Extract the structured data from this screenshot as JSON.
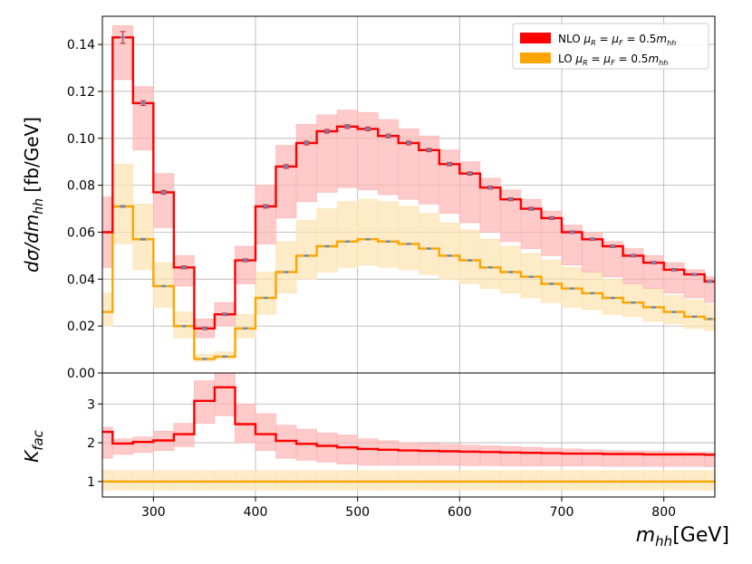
{
  "chart_data": [
    {
      "type": "step",
      "ylabel_parts": {
        "base": "dσ/dm",
        "sub": "hh",
        "unit": " [fb/GeV]"
      },
      "xlim": [
        250,
        850
      ],
      "ylim": [
        0,
        0.152
      ],
      "yticks": [
        0.0,
        0.02,
        0.04,
        0.06,
        0.08,
        0.1,
        0.12,
        0.14
      ],
      "ytick_labels": [
        "0.00",
        "0.02",
        "0.04",
        "0.06",
        "0.08",
        "0.10",
        "0.12",
        "0.14"
      ],
      "grid": true,
      "legend": {
        "position": "top-right",
        "entries": [
          {
            "label_parts": [
              "NLO ",
              "μ",
              "R",
              " = ",
              "μ",
              "F",
              " = 0.5",
              "m",
              "hh"
            ],
            "color": "#ff0000"
          },
          {
            "label_parts": [
              "LO ",
              "μ",
              "R",
              " = ",
              "μ",
              "F",
              " = 0.5",
              "m",
              "hh"
            ],
            "color": "#ffa500"
          }
        ]
      },
      "edges": [
        250,
        260,
        280,
        300,
        320,
        340,
        360,
        380,
        400,
        420,
        440,
        460,
        480,
        500,
        520,
        540,
        560,
        580,
        600,
        620,
        640,
        660,
        680,
        700,
        720,
        740,
        760,
        780,
        800,
        820,
        840,
        850
      ],
      "series": [
        {
          "name": "NLO",
          "color": "#ff0000",
          "band_color": "#ffb3b3",
          "values": [
            0.06,
            0.143,
            0.115,
            0.077,
            0.045,
            0.019,
            0.025,
            0.048,
            0.071,
            0.088,
            0.098,
            0.103,
            0.105,
            0.104,
            0.101,
            0.098,
            0.095,
            0.089,
            0.085,
            0.079,
            0.074,
            0.07,
            0.066,
            0.06,
            0.057,
            0.054,
            0.05,
            0.047,
            0.044,
            0.042,
            0.039
          ],
          "band_low": [
            0.045,
            0.125,
            0.095,
            0.062,
            0.037,
            0.015,
            0.02,
            0.038,
            0.055,
            0.066,
            0.073,
            0.077,
            0.079,
            0.078,
            0.076,
            0.074,
            0.072,
            0.068,
            0.064,
            0.06,
            0.056,
            0.053,
            0.05,
            0.046,
            0.043,
            0.041,
            0.038,
            0.036,
            0.034,
            0.032,
            0.03
          ],
          "band_high": [
            0.075,
            0.148,
            0.122,
            0.085,
            0.05,
            0.023,
            0.03,
            0.054,
            0.08,
            0.097,
            0.106,
            0.11,
            0.112,
            0.111,
            0.108,
            0.104,
            0.101,
            0.095,
            0.09,
            0.083,
            0.078,
            0.074,
            0.069,
            0.063,
            0.06,
            0.056,
            0.053,
            0.05,
            0.047,
            0.044,
            0.041
          ],
          "errors": [
            0.0,
            0.0025,
            0.001,
            0.0008,
            0.0006,
            0.0005,
            0.0005,
            0.0006,
            0.0007,
            0.0008,
            0.0008,
            0.0008,
            0.0008,
            0.0008,
            0.0008,
            0.0008,
            0.0007,
            0.0007,
            0.0007,
            0.0006,
            0.0006,
            0.0006,
            0.0006,
            0.0005,
            0.0005,
            0.0005,
            0.0005,
            0.0005,
            0.0005,
            0.0004,
            0.0004
          ]
        },
        {
          "name": "LO",
          "color": "#ffa500",
          "band_color": "#fde3b0",
          "values": [
            0.026,
            0.071,
            0.057,
            0.037,
            0.02,
            0.006,
            0.007,
            0.019,
            0.032,
            0.043,
            0.05,
            0.054,
            0.056,
            0.057,
            0.056,
            0.055,
            0.053,
            0.05,
            0.048,
            0.045,
            0.043,
            0.041,
            0.038,
            0.036,
            0.034,
            0.032,
            0.03,
            0.028,
            0.026,
            0.024,
            0.023
          ],
          "band_low": [
            0.02,
            0.055,
            0.044,
            0.028,
            0.015,
            0.005,
            0.006,
            0.015,
            0.025,
            0.034,
            0.04,
            0.043,
            0.045,
            0.046,
            0.045,
            0.044,
            0.042,
            0.04,
            0.038,
            0.036,
            0.034,
            0.032,
            0.03,
            0.028,
            0.027,
            0.025,
            0.024,
            0.022,
            0.021,
            0.019,
            0.018
          ],
          "band_high": [
            0.034,
            0.089,
            0.072,
            0.047,
            0.026,
            0.008,
            0.009,
            0.025,
            0.043,
            0.056,
            0.065,
            0.07,
            0.073,
            0.074,
            0.073,
            0.071,
            0.068,
            0.064,
            0.061,
            0.057,
            0.054,
            0.051,
            0.048,
            0.045,
            0.043,
            0.04,
            0.038,
            0.036,
            0.033,
            0.031,
            0.029
          ],
          "errors": [
            0.0,
            0.0003,
            0.0003,
            0.0002,
            0.0002,
            0.0001,
            0.0001,
            0.0001,
            0.0002,
            0.0002,
            0.0002,
            0.0002,
            0.0002,
            0.0002,
            0.0002,
            0.0002,
            0.0002,
            0.0002,
            0.0002,
            0.0002,
            0.0002,
            0.0002,
            0.0002,
            0.0002,
            0.0002,
            0.0002,
            0.0002,
            0.0002,
            0.0002,
            0.0002,
            0.0002
          ]
        }
      ]
    },
    {
      "type": "step",
      "ylabel_parts": {
        "base": "K",
        "sub": "fac"
      },
      "xlabel_parts": {
        "base": "m",
        "sub": "hh",
        "unit": "[GeV]"
      },
      "xlim": [
        250,
        850
      ],
      "ylim": [
        0.6,
        3.8
      ],
      "xticks": [
        300,
        400,
        500,
        600,
        700,
        800
      ],
      "xtick_labels": [
        "300",
        "400",
        "500",
        "600",
        "700",
        "800"
      ],
      "yticks": [
        1,
        2,
        3
      ],
      "ytick_labels": [
        "1",
        "2",
        "3"
      ],
      "grid": true,
      "edges": [
        250,
        260,
        280,
        300,
        320,
        340,
        360,
        380,
        400,
        420,
        440,
        460,
        480,
        500,
        520,
        540,
        560,
        580,
        600,
        620,
        640,
        660,
        680,
        700,
        720,
        740,
        760,
        780,
        800,
        820,
        840,
        850
      ],
      "series": [
        {
          "name": "NLO",
          "color": "#ff0000",
          "band_color": "#ffb3b3",
          "values": [
            2.28,
            1.98,
            2.02,
            2.06,
            2.22,
            3.08,
            3.43,
            2.48,
            2.22,
            2.05,
            1.97,
            1.92,
            1.88,
            1.84,
            1.82,
            1.8,
            1.79,
            1.78,
            1.77,
            1.76,
            1.75,
            1.74,
            1.73,
            1.72,
            1.72,
            1.71,
            1.71,
            1.7,
            1.7,
            1.7,
            1.69
          ],
          "band_low": [
            1.6,
            1.7,
            1.75,
            1.8,
            1.9,
            2.5,
            2.7,
            2.0,
            1.8,
            1.6,
            1.55,
            1.5,
            1.45,
            1.42,
            1.42,
            1.42,
            1.42,
            1.42,
            1.41,
            1.41,
            1.4,
            1.4,
            1.4,
            1.4,
            1.4,
            1.39,
            1.39,
            1.39,
            1.39,
            1.39,
            1.38
          ],
          "band_high": [
            2.4,
            2.1,
            2.15,
            2.3,
            2.5,
            3.6,
            3.8,
            3.0,
            2.75,
            2.45,
            2.35,
            2.25,
            2.2,
            2.1,
            2.05,
            2.0,
            1.98,
            1.96,
            1.94,
            1.92,
            1.9,
            1.88,
            1.86,
            1.84,
            1.82,
            1.8,
            1.79,
            1.78,
            1.77,
            1.76,
            1.75
          ]
        },
        {
          "name": "LO",
          "color": "#ffa500",
          "band_color": "#fde3b0",
          "values": [
            1,
            1,
            1,
            1,
            1,
            1,
            1,
            1,
            1,
            1,
            1,
            1,
            1,
            1,
            1,
            1,
            1,
            1,
            1,
            1,
            1,
            1,
            1,
            1,
            1,
            1,
            1,
            1,
            1,
            1,
            1
          ],
          "band_low": [
            0.78,
            0.78,
            0.78,
            0.78,
            0.78,
            0.78,
            0.78,
            0.78,
            0.78,
            0.78,
            0.78,
            0.78,
            0.78,
            0.78,
            0.78,
            0.78,
            0.78,
            0.78,
            0.78,
            0.78,
            0.78,
            0.78,
            0.78,
            0.78,
            0.78,
            0.78,
            0.78,
            0.78,
            0.78,
            0.78,
            0.78
          ],
          "band_high": [
            1.28,
            1.28,
            1.28,
            1.28,
            1.28,
            1.28,
            1.28,
            1.28,
            1.28,
            1.28,
            1.28,
            1.28,
            1.28,
            1.28,
            1.28,
            1.28,
            1.28,
            1.28,
            1.28,
            1.28,
            1.28,
            1.28,
            1.28,
            1.28,
            1.28,
            1.28,
            1.28,
            1.28,
            1.28,
            1.28,
            1.28
          ]
        }
      ]
    }
  ]
}
